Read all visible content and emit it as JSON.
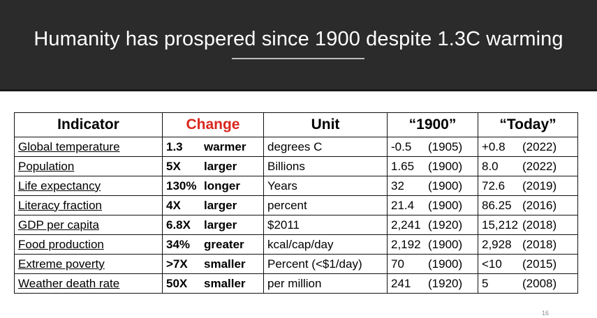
{
  "slide": {
    "title": "Humanity has prospered since 1900 despite 1.3C warming",
    "page_number": "16"
  },
  "table": {
    "headers": {
      "indicator": "Indicator",
      "change": "Change",
      "unit": "Unit",
      "y1900": "“1900”",
      "today": "“Today”"
    },
    "rows": [
      {
        "indicator": "Global temperature",
        "change_amount": "1.3",
        "change_word": "warmer",
        "unit": "degrees C",
        "v1900": "-0.5",
        "y1900": "(1905)",
        "vtoday": "+0.8",
        "ytoday": "(2022)"
      },
      {
        "indicator": "Population",
        "change_amount": "5X",
        "change_word": "larger",
        "unit": "Billions",
        "v1900": "1.65",
        "y1900": "(1900)",
        "vtoday": "8.0",
        "ytoday": "(2022)"
      },
      {
        "indicator": "Life expectancy",
        "change_amount": "130%",
        "change_word": "longer",
        "unit": "Years",
        "v1900": "32",
        "y1900": "(1900)",
        "vtoday": "72.6",
        "ytoday": "(2019)"
      },
      {
        "indicator": "Literacy fraction",
        "change_amount": "4X",
        "change_word": "larger",
        "unit": "percent",
        "v1900": "21.4",
        "y1900": "(1900)",
        "vtoday": "86.25",
        "ytoday": "(2016)"
      },
      {
        "indicator": "GDP per capita",
        "change_amount": "6.8X",
        "change_word": "larger",
        "unit": "$2011",
        "v1900": "2,241",
        "y1900": "(1920)",
        "vtoday": "15,212",
        "ytoday": "(2018)"
      },
      {
        "indicator": "Food production",
        "change_amount": "34%",
        "change_word": "greater",
        "unit": "kcal/cap/day",
        "v1900": "2,192",
        "y1900": "(1900)",
        "vtoday": "2,928",
        "ytoday": "(2018)"
      },
      {
        "indicator": "Extreme poverty",
        "change_amount": ">7X",
        "change_word": "smaller",
        "unit": "Percent (<$1/day)",
        "v1900": "70",
        "y1900": "(1900)",
        "vtoday": "<10",
        "ytoday": "(2015)"
      },
      {
        "indicator": "Weather death rate",
        "change_amount": "50X",
        "change_word": "smaller",
        "unit": "per million",
        "v1900": "241",
        "y1900": "(1920)",
        "vtoday": "5",
        "ytoday": "(2008)"
      }
    ]
  }
}
